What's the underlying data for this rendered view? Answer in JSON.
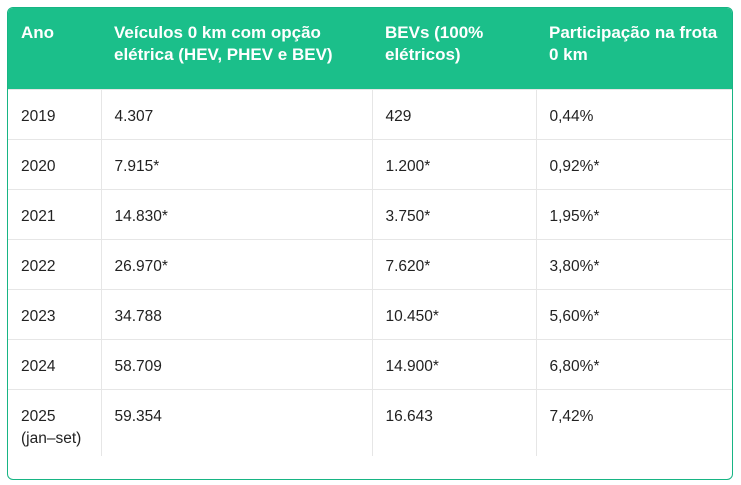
{
  "table": {
    "headers": [
      "Ano",
      "Veículos 0 km com opção elétrica (HEV, PHEV e BEV)",
      "BEVs (100% elétricos)",
      "Participação na frota 0 km"
    ],
    "rows": [
      {
        "ano": "2019",
        "ano_sub": "",
        "veiculos": "4.307",
        "bevs": "429",
        "participacao": "0,44%"
      },
      {
        "ano": "2020",
        "ano_sub": "",
        "veiculos": "7.915*",
        "bevs": "1.200*",
        "participacao": "0,92%*"
      },
      {
        "ano": "2021",
        "ano_sub": "",
        "veiculos": "14.830*",
        "bevs": "3.750*",
        "participacao": "1,95%*"
      },
      {
        "ano": "2022",
        "ano_sub": "",
        "veiculos": "26.970*",
        "bevs": "7.620*",
        "participacao": "3,80%*"
      },
      {
        "ano": "2023",
        "ano_sub": "",
        "veiculos": "34.788",
        "bevs": "10.450*",
        "participacao": "5,60%*"
      },
      {
        "ano": "2024",
        "ano_sub": "",
        "veiculos": "58.709",
        "bevs": "14.900*",
        "participacao": "6,80%*"
      },
      {
        "ano": "2025",
        "ano_sub": "(jan–set)",
        "veiculos": "59.354",
        "bevs": "16.643",
        "participacao": "7,42%"
      }
    ]
  },
  "colors": {
    "header_bg": "#1bbf8a",
    "header_text": "#ffffff",
    "border": "#17b584"
  }
}
